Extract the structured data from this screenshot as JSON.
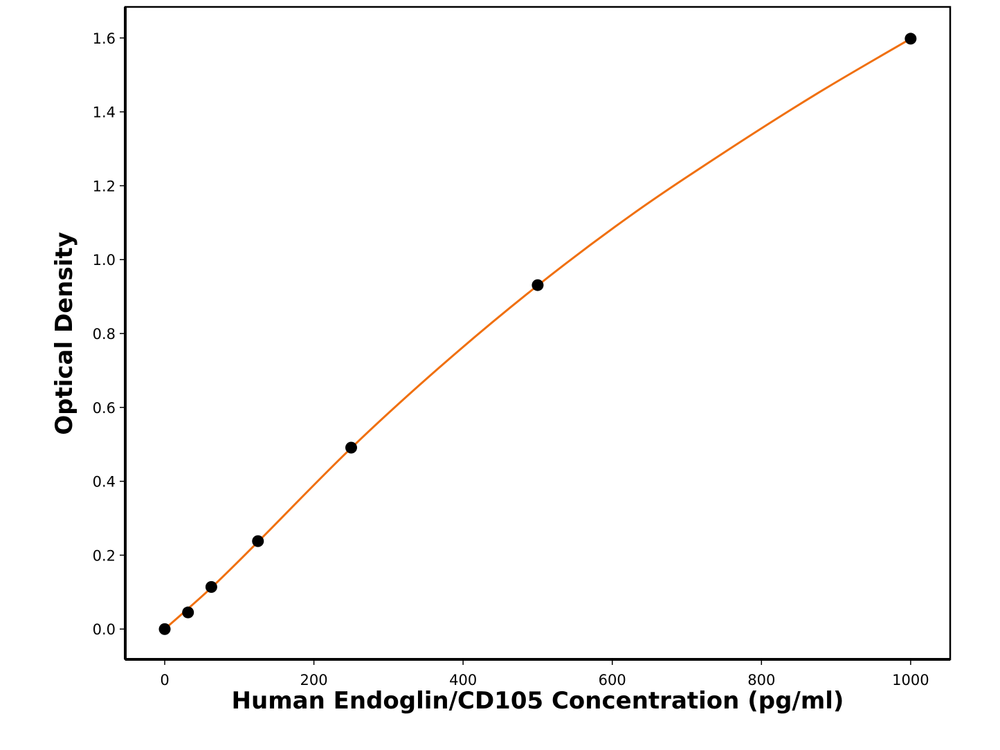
{
  "chart_data": {
    "type": "scatter",
    "x_label": "Human Endoglin/CD105 Concentration (pg/ml)",
    "y_label": "Optical Density",
    "series": [
      {
        "type": "line",
        "color": "#f07010",
        "x": [
          0,
          62.5,
          125,
          250,
          375,
          500,
          625,
          750,
          875,
          1000
        ],
        "values": [
          0,
          0.112,
          0.236,
          0.49,
          0.72,
          0.93,
          1.12,
          1.29,
          1.45,
          1.598
        ]
      },
      {
        "type": "scatter",
        "color": "#000000",
        "x": [
          0,
          31.25,
          62.5,
          125,
          250,
          500,
          1000
        ],
        "values": [
          0.0,
          0.045,
          0.114,
          0.238,
          0.491,
          0.931,
          1.598
        ]
      }
    ],
    "xlim": [
      -52.9,
      1053
    ],
    "ylim": [
      -0.082,
      1.684
    ],
    "xticks": [
      0,
      200,
      400,
      600,
      800,
      1000
    ],
    "yticks": [
      {
        "value": 0,
        "label": "0.0"
      },
      {
        "value": 0.2,
        "label": "0.2"
      },
      {
        "value": 0.4,
        "label": "0.4"
      },
      {
        "value": 0.6,
        "label": "0.6"
      },
      {
        "value": 0.8,
        "label": "0.8"
      },
      {
        "value": 1.0,
        "label": "1.0"
      },
      {
        "value": 1.2,
        "label": "1.2"
      },
      {
        "value": 1.4,
        "label": "1.4"
      },
      {
        "value": 1.6,
        "label": "1.6"
      }
    ]
  }
}
